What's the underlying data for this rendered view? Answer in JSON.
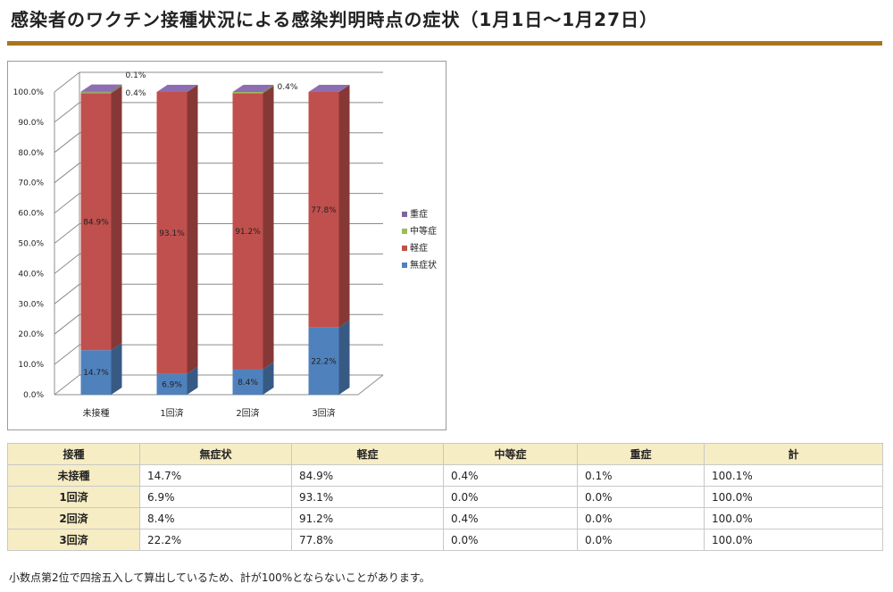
{
  "page": {
    "title": "感染者のワクチン接種状況による感染判明時点の症状（1月1日～1月27日）",
    "footnote": "小数点第2位で四捨五入して算出しているため、計が100%とならないことがあります。"
  },
  "chart_data": {
    "type": "bar",
    "stacked": true,
    "three_d": true,
    "categories": [
      "未接種",
      "1回済",
      "2回済",
      "3回済"
    ],
    "ylim": [
      0,
      100
    ],
    "yticks": [
      "0.0%",
      "10.0%",
      "20.0%",
      "30.0%",
      "40.0%",
      "50.0%",
      "60.0%",
      "70.0%",
      "80.0%",
      "90.0%",
      "100.0%"
    ],
    "grid": true,
    "legend_position": "right",
    "series": [
      {
        "name": "無症状",
        "color": "#4f81bd",
        "values": [
          14.7,
          6.9,
          8.4,
          22.2
        ],
        "labels": [
          "14.7%",
          "6.9%",
          "8.4%",
          "22.2%"
        ]
      },
      {
        "name": "軽症",
        "color": "#c0504d",
        "values": [
          84.9,
          93.1,
          91.2,
          77.8
        ],
        "labels": [
          "84.9%",
          "93.1%",
          "91.2%",
          "77.8%"
        ]
      },
      {
        "name": "中等症",
        "color": "#9bbb59",
        "values": [
          0.4,
          0.0,
          0.4,
          0.0
        ],
        "labels": [
          "0.4%",
          "",
          "0.4%",
          ""
        ]
      },
      {
        "name": "重症",
        "color": "#8064a2",
        "values": [
          0.1,
          0.0,
          0.0,
          0.0
        ],
        "labels": [
          "0.1%",
          "",
          "",
          ""
        ]
      }
    ]
  },
  "table": {
    "headers": [
      "接種",
      "無症状",
      "軽症",
      "中等症",
      "重症",
      "計"
    ],
    "rows": [
      {
        "label": "未接種",
        "cells": [
          "14.7%",
          "84.9%",
          "0.4%",
          "0.1%",
          "100.1%"
        ]
      },
      {
        "label": "1回済",
        "cells": [
          "6.9%",
          "93.1%",
          "0.0%",
          "0.0%",
          "100.0%"
        ]
      },
      {
        "label": "2回済",
        "cells": [
          "8.4%",
          "91.2%",
          "0.4%",
          "0.0%",
          "100.0%"
        ]
      },
      {
        "label": "3回済",
        "cells": [
          "22.2%",
          "77.8%",
          "0.0%",
          "0.0%",
          "100.0%"
        ]
      }
    ]
  }
}
